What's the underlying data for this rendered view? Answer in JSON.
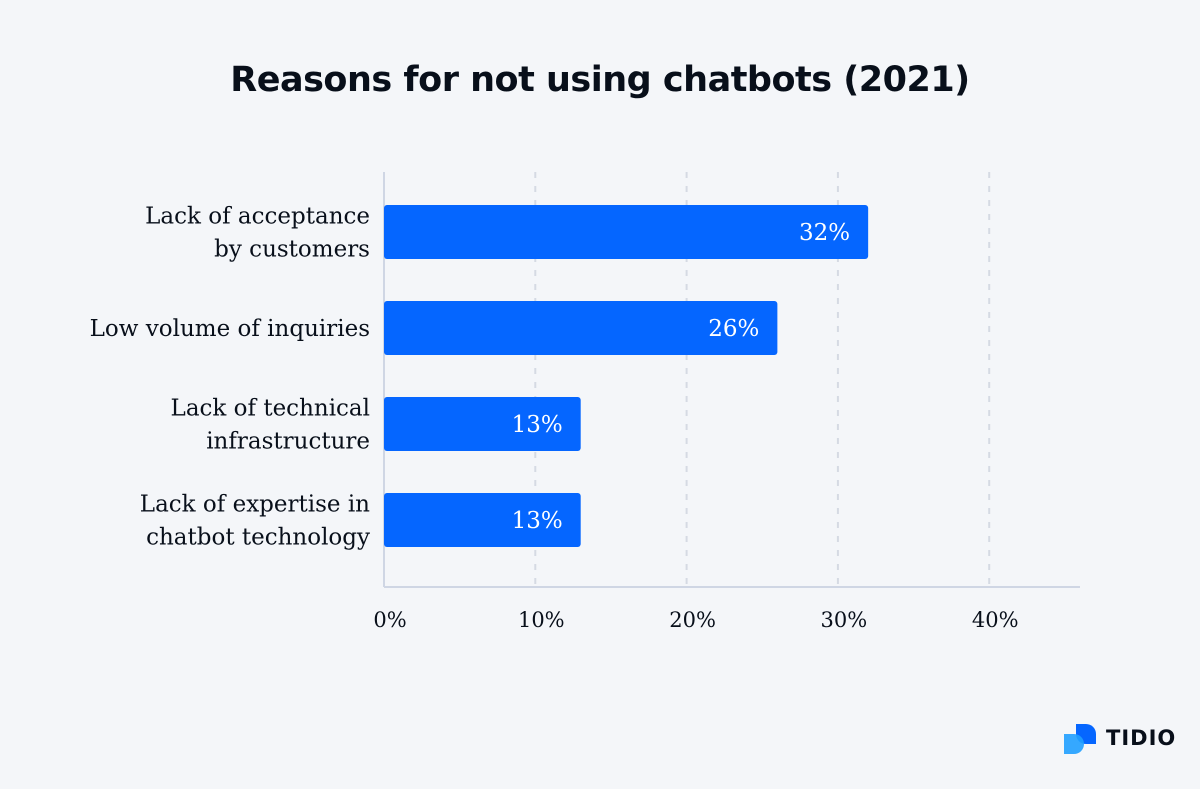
{
  "chart_data": {
    "type": "bar",
    "orientation": "horizontal",
    "title": "Reasons for not using chatbots (2021)",
    "categories": [
      [
        "Lack of acceptance",
        "by customers"
      ],
      [
        "Low volume of inquiries"
      ],
      [
        "Lack of technical",
        "infrastructure"
      ],
      [
        "Lack of expertise in",
        "chatbot technology"
      ]
    ],
    "values": [
      32,
      26,
      13,
      13
    ],
    "data_labels": [
      "32%",
      "26%",
      "13%",
      "13%"
    ],
    "xticks": [
      0,
      10,
      20,
      30,
      40
    ],
    "xtick_labels": [
      "0%",
      "10%",
      "20%",
      "30%",
      "40%"
    ],
    "xlim": [
      0,
      46
    ],
    "grid": "vertical dashed",
    "legend": "none",
    "colors": {
      "bar": "#0566ff",
      "background": "#f4f6f9",
      "grid": "#d5dae3",
      "axis": "#cfd6e4"
    }
  },
  "logo": {
    "text": "TIDIO",
    "colors": [
      "#0566ff",
      "#20a0ff"
    ]
  }
}
